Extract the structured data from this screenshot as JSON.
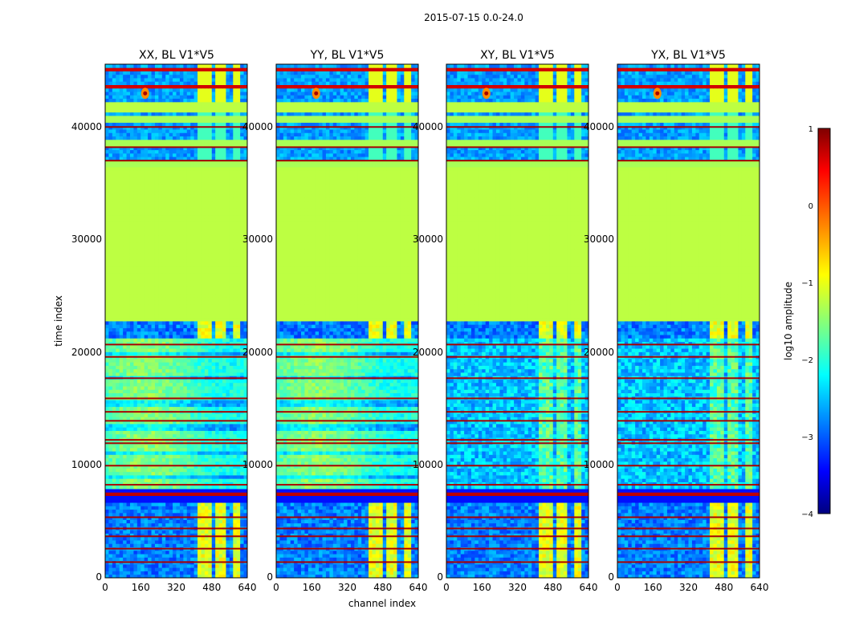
{
  "chart_data": {
    "type": "heatmap",
    "title": "2015-07-15 0.0-24.0",
    "xlabel": "channel index",
    "ylabel": "time index",
    "xlim": [
      0,
      640
    ],
    "ylim": [
      0,
      45800
    ],
    "x_ticks": [
      0,
      160,
      320,
      480,
      640
    ],
    "y_ticks": [
      0,
      10000,
      20000,
      30000,
      40000
    ],
    "panels": [
      {
        "title": "XX, BL V1*V5",
        "kind": "parallel"
      },
      {
        "title": "YY, BL V1*V5",
        "kind": "parallel"
      },
      {
        "title": "XY, BL V1*V5",
        "kind": "cross"
      },
      {
        "title": "YX, BL V1*V5",
        "kind": "cross"
      }
    ],
    "colorbar": {
      "label": "log10 amplitude",
      "range": [
        -4,
        1
      ],
      "ticks": [
        -4,
        -3,
        -2,
        -1,
        0,
        1
      ],
      "tick_labels": [
        "−4",
        "−3",
        "−2",
        "−1",
        "0",
        "1"
      ],
      "colormap": "jet"
    },
    "regions": [
      {
        "t0": 0,
        "t1": 6600,
        "level": "low_with_rfi"
      },
      {
        "t0": 6600,
        "t1": 8000,
        "level": "flag_stripes"
      },
      {
        "t0": 8000,
        "t1": 21400,
        "level": "mid_structured"
      },
      {
        "t0": 21400,
        "t1": 23000,
        "level": "low_with_rfi"
      },
      {
        "t0": 23000,
        "t1": 36500,
        "level": "constant",
        "value": -1.2
      },
      {
        "t0": 36500,
        "t1": 41500,
        "level": "mixed_bands"
      },
      {
        "t0": 41500,
        "t1": 42500,
        "level": "constant",
        "value": -1.2
      },
      {
        "t0": 42500,
        "t1": 45800,
        "level": "flag_stripes_top"
      }
    ],
    "rfi_channels": [
      400,
      415,
      430,
      445,
      460,
      475,
      500,
      520,
      540,
      560,
      580,
      595
    ],
    "flag_rows": [
      1400,
      2600,
      3700,
      4400,
      5400,
      8300,
      10000,
      12000,
      12300,
      14000,
      14800,
      16000,
      17800,
      19700,
      20800,
      37200,
      38400,
      40200
    ],
    "sources": [
      {
        "channel": 180,
        "time": 43200
      }
    ]
  }
}
